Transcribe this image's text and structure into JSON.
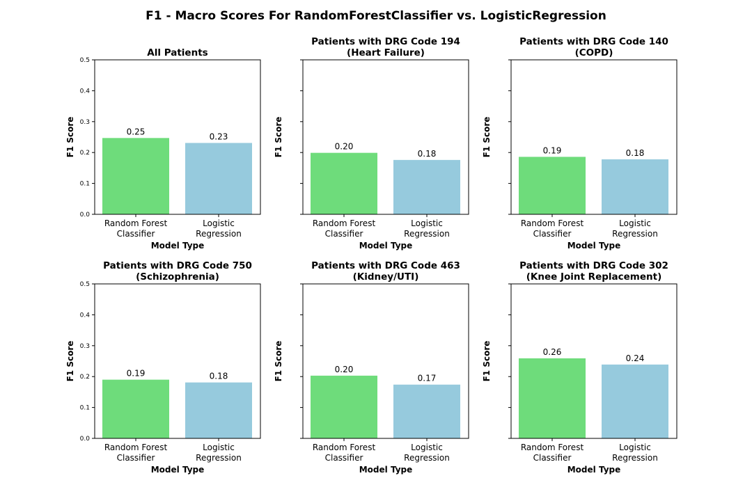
{
  "figure": {
    "title": "F1 - Macro Scores For RandomForestClassifier vs. LogisticRegression"
  },
  "colors": {
    "random_forest": "#6edc7b",
    "logistic": "#96cadd"
  },
  "chart_data": [
    {
      "type": "bar",
      "title": [
        "All Patients"
      ],
      "categories": [
        [
          "Random Forest",
          "Classifier"
        ],
        [
          "Logistic",
          "Regression"
        ]
      ],
      "values": [
        0.247,
        0.231
      ],
      "labels": [
        "0.25",
        "0.23"
      ],
      "xlabel": "Model Type",
      "ylabel": "F1 Score",
      "ylim": [
        0,
        0.5
      ],
      "yticks": [
        "0.0",
        "0.1",
        "0.2",
        "0.3",
        "0.4",
        "0.5"
      ],
      "show_ytick_labels": true
    },
    {
      "type": "bar",
      "title": [
        "Patients with DRG Code 194",
        "(Heart Failure)"
      ],
      "categories": [
        [
          "Random Forest",
          "Classifier"
        ],
        [
          "Logistic",
          "Regression"
        ]
      ],
      "values": [
        0.199,
        0.176
      ],
      "labels": [
        "0.20",
        "0.18"
      ],
      "xlabel": "Model Type",
      "ylabel": "F1 Score",
      "ylim": [
        0,
        0.5
      ],
      "yticks": [
        "0.0",
        "0.1",
        "0.2",
        "0.3",
        "0.4",
        "0.5"
      ],
      "show_ytick_labels": false
    },
    {
      "type": "bar",
      "title": [
        "Patients with DRG Code 140",
        "(COPD)"
      ],
      "categories": [
        [
          "Random Forest",
          "Classifier"
        ],
        [
          "Logistic",
          "Regression"
        ]
      ],
      "values": [
        0.186,
        0.178
      ],
      "labels": [
        "0.19",
        "0.18"
      ],
      "xlabel": "Model Type",
      "ylabel": "F1 Score",
      "ylim": [
        0,
        0.5
      ],
      "yticks": [
        "0.0",
        "0.1",
        "0.2",
        "0.3",
        "0.4",
        "0.5"
      ],
      "show_ytick_labels": false
    },
    {
      "type": "bar",
      "title": [
        "Patients with DRG Code 750",
        "(Schizophrenia)"
      ],
      "categories": [
        [
          "Random Forest",
          "Classifier"
        ],
        [
          "Logistic",
          "Regression"
        ]
      ],
      "values": [
        0.19,
        0.181
      ],
      "labels": [
        "0.19",
        "0.18"
      ],
      "xlabel": "Model Type",
      "ylabel": "F1 Score",
      "ylim": [
        0,
        0.5
      ],
      "yticks": [
        "0.0",
        "0.1",
        "0.2",
        "0.3",
        "0.4",
        "0.5"
      ],
      "show_ytick_labels": true
    },
    {
      "type": "bar",
      "title": [
        "Patients with DRG Code 463",
        "(Kidney/UTI)"
      ],
      "categories": [
        [
          "Random Forest",
          "Classifier"
        ],
        [
          "Logistic",
          "Regression"
        ]
      ],
      "values": [
        0.203,
        0.174
      ],
      "labels": [
        "0.20",
        "0.17"
      ],
      "xlabel": "Model Type",
      "ylabel": "F1 Score",
      "ylim": [
        0,
        0.5
      ],
      "yticks": [
        "0.0",
        "0.1",
        "0.2",
        "0.3",
        "0.4",
        "0.5"
      ],
      "show_ytick_labels": false
    },
    {
      "type": "bar",
      "title": [
        "Patients with DRG Code 302",
        "(Knee Joint Replacement)"
      ],
      "categories": [
        [
          "Random Forest",
          "Classifier"
        ],
        [
          "Logistic",
          "Regression"
        ]
      ],
      "values": [
        0.259,
        0.239
      ],
      "labels": [
        "0.26",
        "0.24"
      ],
      "xlabel": "Model Type",
      "ylabel": "F1 Score",
      "ylim": [
        0,
        0.5
      ],
      "yticks": [
        "0.0",
        "0.1",
        "0.2",
        "0.3",
        "0.4",
        "0.5"
      ],
      "show_ytick_labels": false
    }
  ]
}
